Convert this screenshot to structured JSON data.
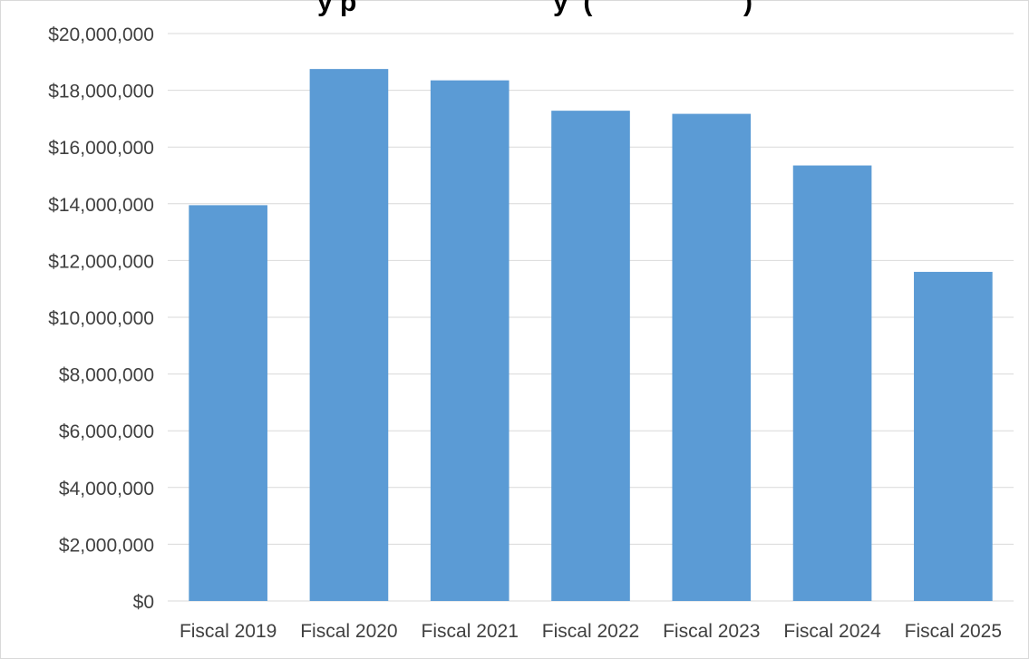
{
  "chart_data": {
    "type": "bar",
    "title": "",
    "title_visible_fragment": "y p                          y  (                    )",
    "xlabel": "",
    "ylabel": "",
    "categories": [
      "Fiscal 2019",
      "Fiscal 2020",
      "Fiscal 2021",
      "Fiscal 2022",
      "Fiscal 2023",
      "Fiscal 2024",
      "Fiscal 2025"
    ],
    "values": [
      13950000,
      18750000,
      18350000,
      17280000,
      17170000,
      15350000,
      11600000
    ],
    "ylim": [
      0,
      20000000
    ],
    "ytick_values": [
      0,
      2000000,
      4000000,
      6000000,
      8000000,
      10000000,
      12000000,
      14000000,
      16000000,
      18000000,
      20000000
    ],
    "ytick_labels": [
      "$0",
      "$2,000,000",
      "$4,000,000",
      "$6,000,000",
      "$8,000,000",
      "$10,000,000",
      "$12,000,000",
      "$14,000,000",
      "$16,000,000",
      "$18,000,000",
      "$20,000,000"
    ],
    "grid": true,
    "legend": "none",
    "colors": {
      "bar": "#5b9bd5",
      "grid": "#d9d9d9",
      "tick_text": "#404040",
      "border": "#d9d9d9"
    }
  }
}
